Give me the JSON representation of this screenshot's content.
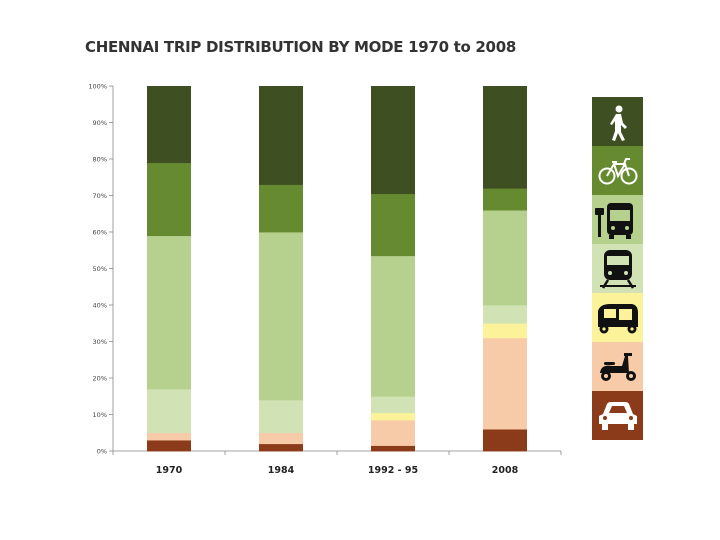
{
  "chart_data": {
    "type": "bar",
    "stacked": true,
    "title": "CHENNAI TRIP DISTRIBUTION BY MODE 1970 to 2008",
    "categories": [
      "1970",
      "1984",
      "1992 - 95",
      "2008"
    ],
    "ylim": [
      0,
      100
    ],
    "yticks": [
      "0%",
      "10%",
      "20%",
      "30%",
      "40%",
      "50%",
      "60%",
      "70%",
      "80%",
      "90%",
      "100%"
    ],
    "grid": false,
    "legend": "right (icon strip)",
    "series": [
      {
        "mode": "car",
        "color": "#8b3a1a",
        "values": [
          3,
          2,
          1.5,
          6
        ]
      },
      {
        "mode": "two-wheeler",
        "color": "#f7cba7",
        "values": [
          2,
          3,
          7,
          25
        ]
      },
      {
        "mode": "auto-rickshaw",
        "color": "#fbf29a",
        "values": [
          0,
          0,
          2,
          4
        ]
      },
      {
        "mode": "rail",
        "color": "#d1e2b5",
        "values": [
          12,
          9,
          4.5,
          5
        ]
      },
      {
        "mode": "bus",
        "color": "#b6d18e",
        "values": [
          42,
          46,
          38.5,
          26
        ]
      },
      {
        "mode": "bicycle",
        "color": "#668a30",
        "values": [
          20,
          13,
          17,
          6
        ]
      },
      {
        "mode": "walk",
        "color": "#3e5021",
        "values": [
          21,
          27,
          29.5,
          28
        ]
      }
    ],
    "legend_items": [
      {
        "icon": "pedestrian-icon",
        "color": "#3e5021"
      },
      {
        "icon": "bicycle-icon",
        "color": "#668a30"
      },
      {
        "icon": "bus-icon",
        "color": "#b6d18e"
      },
      {
        "icon": "train-icon",
        "color": "#d1e2b5"
      },
      {
        "icon": "auto-rickshaw-icon",
        "color": "#fbf29a"
      },
      {
        "icon": "scooter-icon",
        "color": "#f7cba7"
      },
      {
        "icon": "car-icon",
        "color": "#8b3a1a"
      }
    ]
  }
}
